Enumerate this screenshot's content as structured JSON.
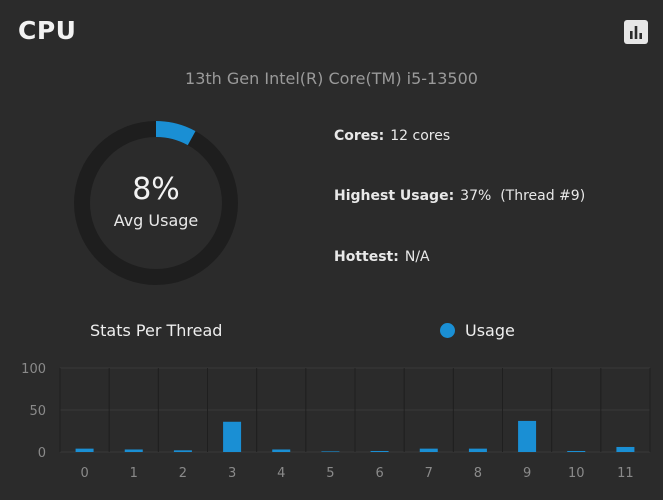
{
  "header": {
    "title": "CPU",
    "chart_icon": "bar-chart-icon"
  },
  "cpu_name": "13th Gen Intel(R) Core(TM) i5-13500",
  "gauge": {
    "value_label": "8%",
    "label": "Avg Usage",
    "fraction": 0.08
  },
  "stats": [
    {
      "key": "Cores:",
      "value": "12 cores"
    },
    {
      "key": "Highest Usage:",
      "value": "37%  (Thread #9)"
    },
    {
      "key": "Hottest:",
      "value": "N/A"
    }
  ],
  "per_thread": {
    "title": "Stats Per Thread",
    "legend": "Usage"
  },
  "colors": {
    "accent": "#1a8fd4",
    "track": "#1e1e1e",
    "background": "#2b2b2b"
  },
  "chart_data": {
    "type": "bar",
    "title": "Stats Per Thread",
    "categories": [
      "0",
      "1",
      "2",
      "3",
      "4",
      "5",
      "6",
      "7",
      "8",
      "9",
      "10",
      "11"
    ],
    "series": [
      {
        "name": "Usage",
        "values": [
          4,
          3,
          2,
          36,
          3,
          0,
          1,
          4,
          4,
          37,
          1,
          6
        ]
      }
    ],
    "ylim": [
      0,
      100
    ],
    "yticks": [
      "0",
      "50",
      "100"
    ],
    "legend_position": "top-right",
    "grid": true
  }
}
